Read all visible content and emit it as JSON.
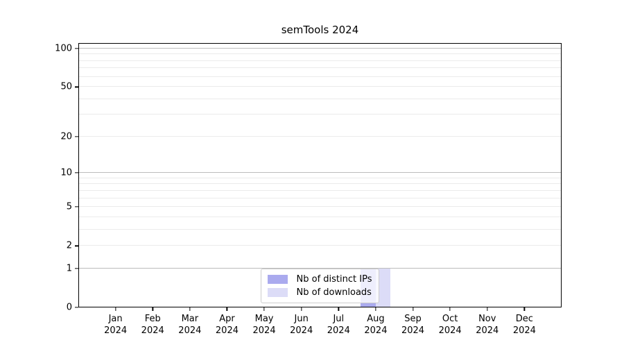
{
  "chart_data": {
    "type": "bar",
    "title": "semTools 2024",
    "x": {
      "months": [
        "Jan",
        "Feb",
        "Mar",
        "Apr",
        "May",
        "Jun",
        "Jul",
        "Aug",
        "Sep",
        "Oct",
        "Nov",
        "Dec"
      ],
      "year": "2024"
    },
    "series": [
      {
        "name": "Nb of distinct IPs",
        "color": "#aaaaee",
        "values": [
          0,
          0,
          0,
          0,
          0,
          0,
          0,
          1,
          0,
          0,
          0,
          0
        ]
      },
      {
        "name": "Nb of downloads",
        "color": "#dcdcf7",
        "values": [
          0,
          0,
          0,
          0,
          0,
          0,
          0,
          1,
          0,
          0,
          0,
          0
        ]
      }
    ],
    "y_axis": {
      "scale": "log10(v+1)",
      "tick_labels": [
        100,
        50,
        20,
        10,
        5,
        2,
        1,
        0
      ],
      "max": 110.5,
      "major_grid": [
        1,
        10,
        100
      ],
      "minor_grid": [
        2,
        3,
        4,
        5,
        6,
        7,
        8,
        9,
        20,
        30,
        40,
        50,
        60,
        70,
        80,
        90
      ]
    },
    "legend": {
      "position": "lower center"
    },
    "style": {
      "major_grid_color": "#bcbcbc",
      "minor_grid_color": "#ebebeb",
      "spine_color": "#000000",
      "background": "#ffffff",
      "bar_width_fraction": 0.4
    }
  }
}
